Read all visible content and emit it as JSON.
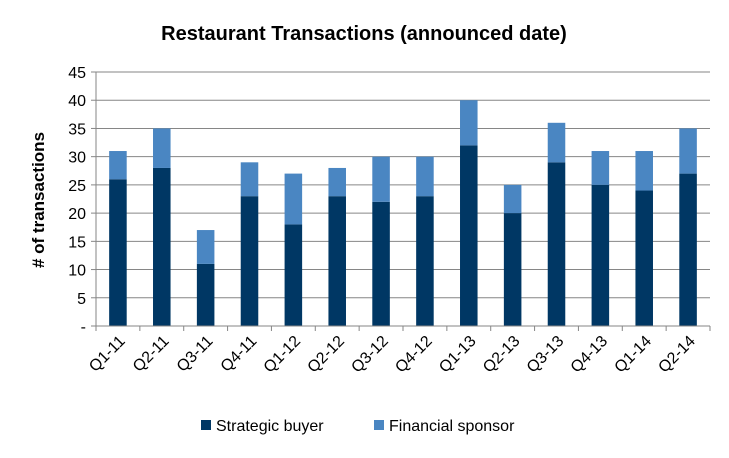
{
  "chart_data": {
    "type": "bar",
    "stacked": true,
    "title": "Restaurant Transactions  (announced date)",
    "xlabel": "",
    "ylabel": "# of transactions",
    "ylim": [
      0,
      45
    ],
    "yticks": [
      0,
      5,
      10,
      15,
      20,
      25,
      30,
      35,
      40,
      45
    ],
    "ytick_labels": [
      "-",
      "5",
      "10",
      "15",
      "20",
      "25",
      "30",
      "35",
      "40",
      "45"
    ],
    "grid": true,
    "legend": "bottom",
    "categories": [
      "Q1-11",
      "Q2-11",
      "Q3-11",
      "Q4-11",
      "Q1-12",
      "Q2-12",
      "Q3-12",
      "Q4-12",
      "Q1-13",
      "Q2-13",
      "Q3-13",
      "Q4-13",
      "Q1-14",
      "Q2-14"
    ],
    "series": [
      {
        "name": "Strategic buyer",
        "color": "#003764",
        "values": [
          26,
          28,
          11,
          23,
          18,
          23,
          22,
          23,
          32,
          20,
          29,
          25,
          24,
          27
        ]
      },
      {
        "name": "Financial sponsor",
        "color": "#4A86C2",
        "values": [
          5,
          7,
          6,
          6,
          9,
          5,
          8,
          7,
          8,
          5,
          7,
          6,
          7,
          8
        ]
      }
    ]
  }
}
